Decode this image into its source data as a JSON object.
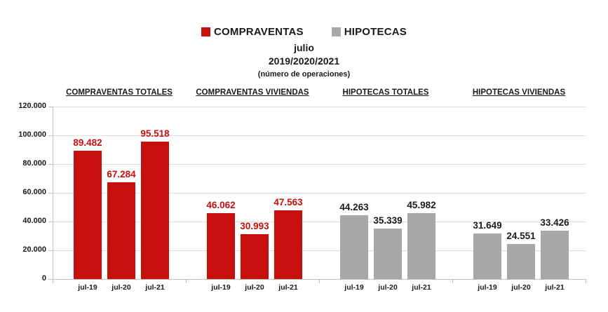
{
  "legend": [
    {
      "label": "COMPRAVENTAS",
      "color": "#c5100e"
    },
    {
      "label": "HIPOTECAS",
      "color": "#a8a8a8"
    }
  ],
  "title": {
    "line1": "julio",
    "line2": "2019/2020/2021",
    "line3": "(número de operaciones)"
  },
  "colors": {
    "compraventas_red": "#c5100e",
    "hipotecas_gray": "#a8a8a8",
    "black_label": "#1a1a1a",
    "gridline": "#dcdcdc",
    "axis": "#bfbfbf"
  },
  "chart_data": {
    "type": "bar",
    "title": "julio 2019/2020/2021 (número de operaciones)",
    "xlabel": "",
    "ylabel": "",
    "ylim": [
      0,
      120000
    ],
    "ytick_step": 20000,
    "yticks": [
      "0",
      "20.000",
      "40.000",
      "60.000",
      "80.000",
      "100.000",
      "120.000"
    ],
    "grid": true,
    "legend_position": "top",
    "categories": [
      "jul-19",
      "jul-20",
      "jul-21"
    ],
    "groups": [
      {
        "title": "COMPRAVENTAS TOTALES",
        "series": "COMPRAVENTAS",
        "color": "#c5100e",
        "label_color": "#c5100e",
        "values": [
          89482,
          67284,
          95518
        ],
        "labels": [
          "89.482",
          "67.284",
          "95.518"
        ]
      },
      {
        "title": "COMPRAVENTAS VIVIENDAS",
        "series": "COMPRAVENTAS",
        "color": "#c5100e",
        "label_color": "#c5100e",
        "values": [
          46062,
          30993,
          47563
        ],
        "labels": [
          "46.062",
          "30.993",
          "47.563"
        ]
      },
      {
        "title": "HIPOTECAS TOTALES",
        "series": "HIPOTECAS",
        "color": "#a8a8a8",
        "label_color": "#1a1a1a",
        "values": [
          44263,
          35339,
          45982
        ],
        "labels": [
          "44.263",
          "35.339",
          "45.982"
        ]
      },
      {
        "title": "HIPOTECAS VIVIENDAS",
        "series": "HIPOTECAS",
        "color": "#a8a8a8",
        "label_color": "#1a1a1a",
        "values": [
          31649,
          24551,
          33426
        ],
        "labels": [
          "31.649",
          "24.551",
          "33.426"
        ]
      }
    ]
  }
}
